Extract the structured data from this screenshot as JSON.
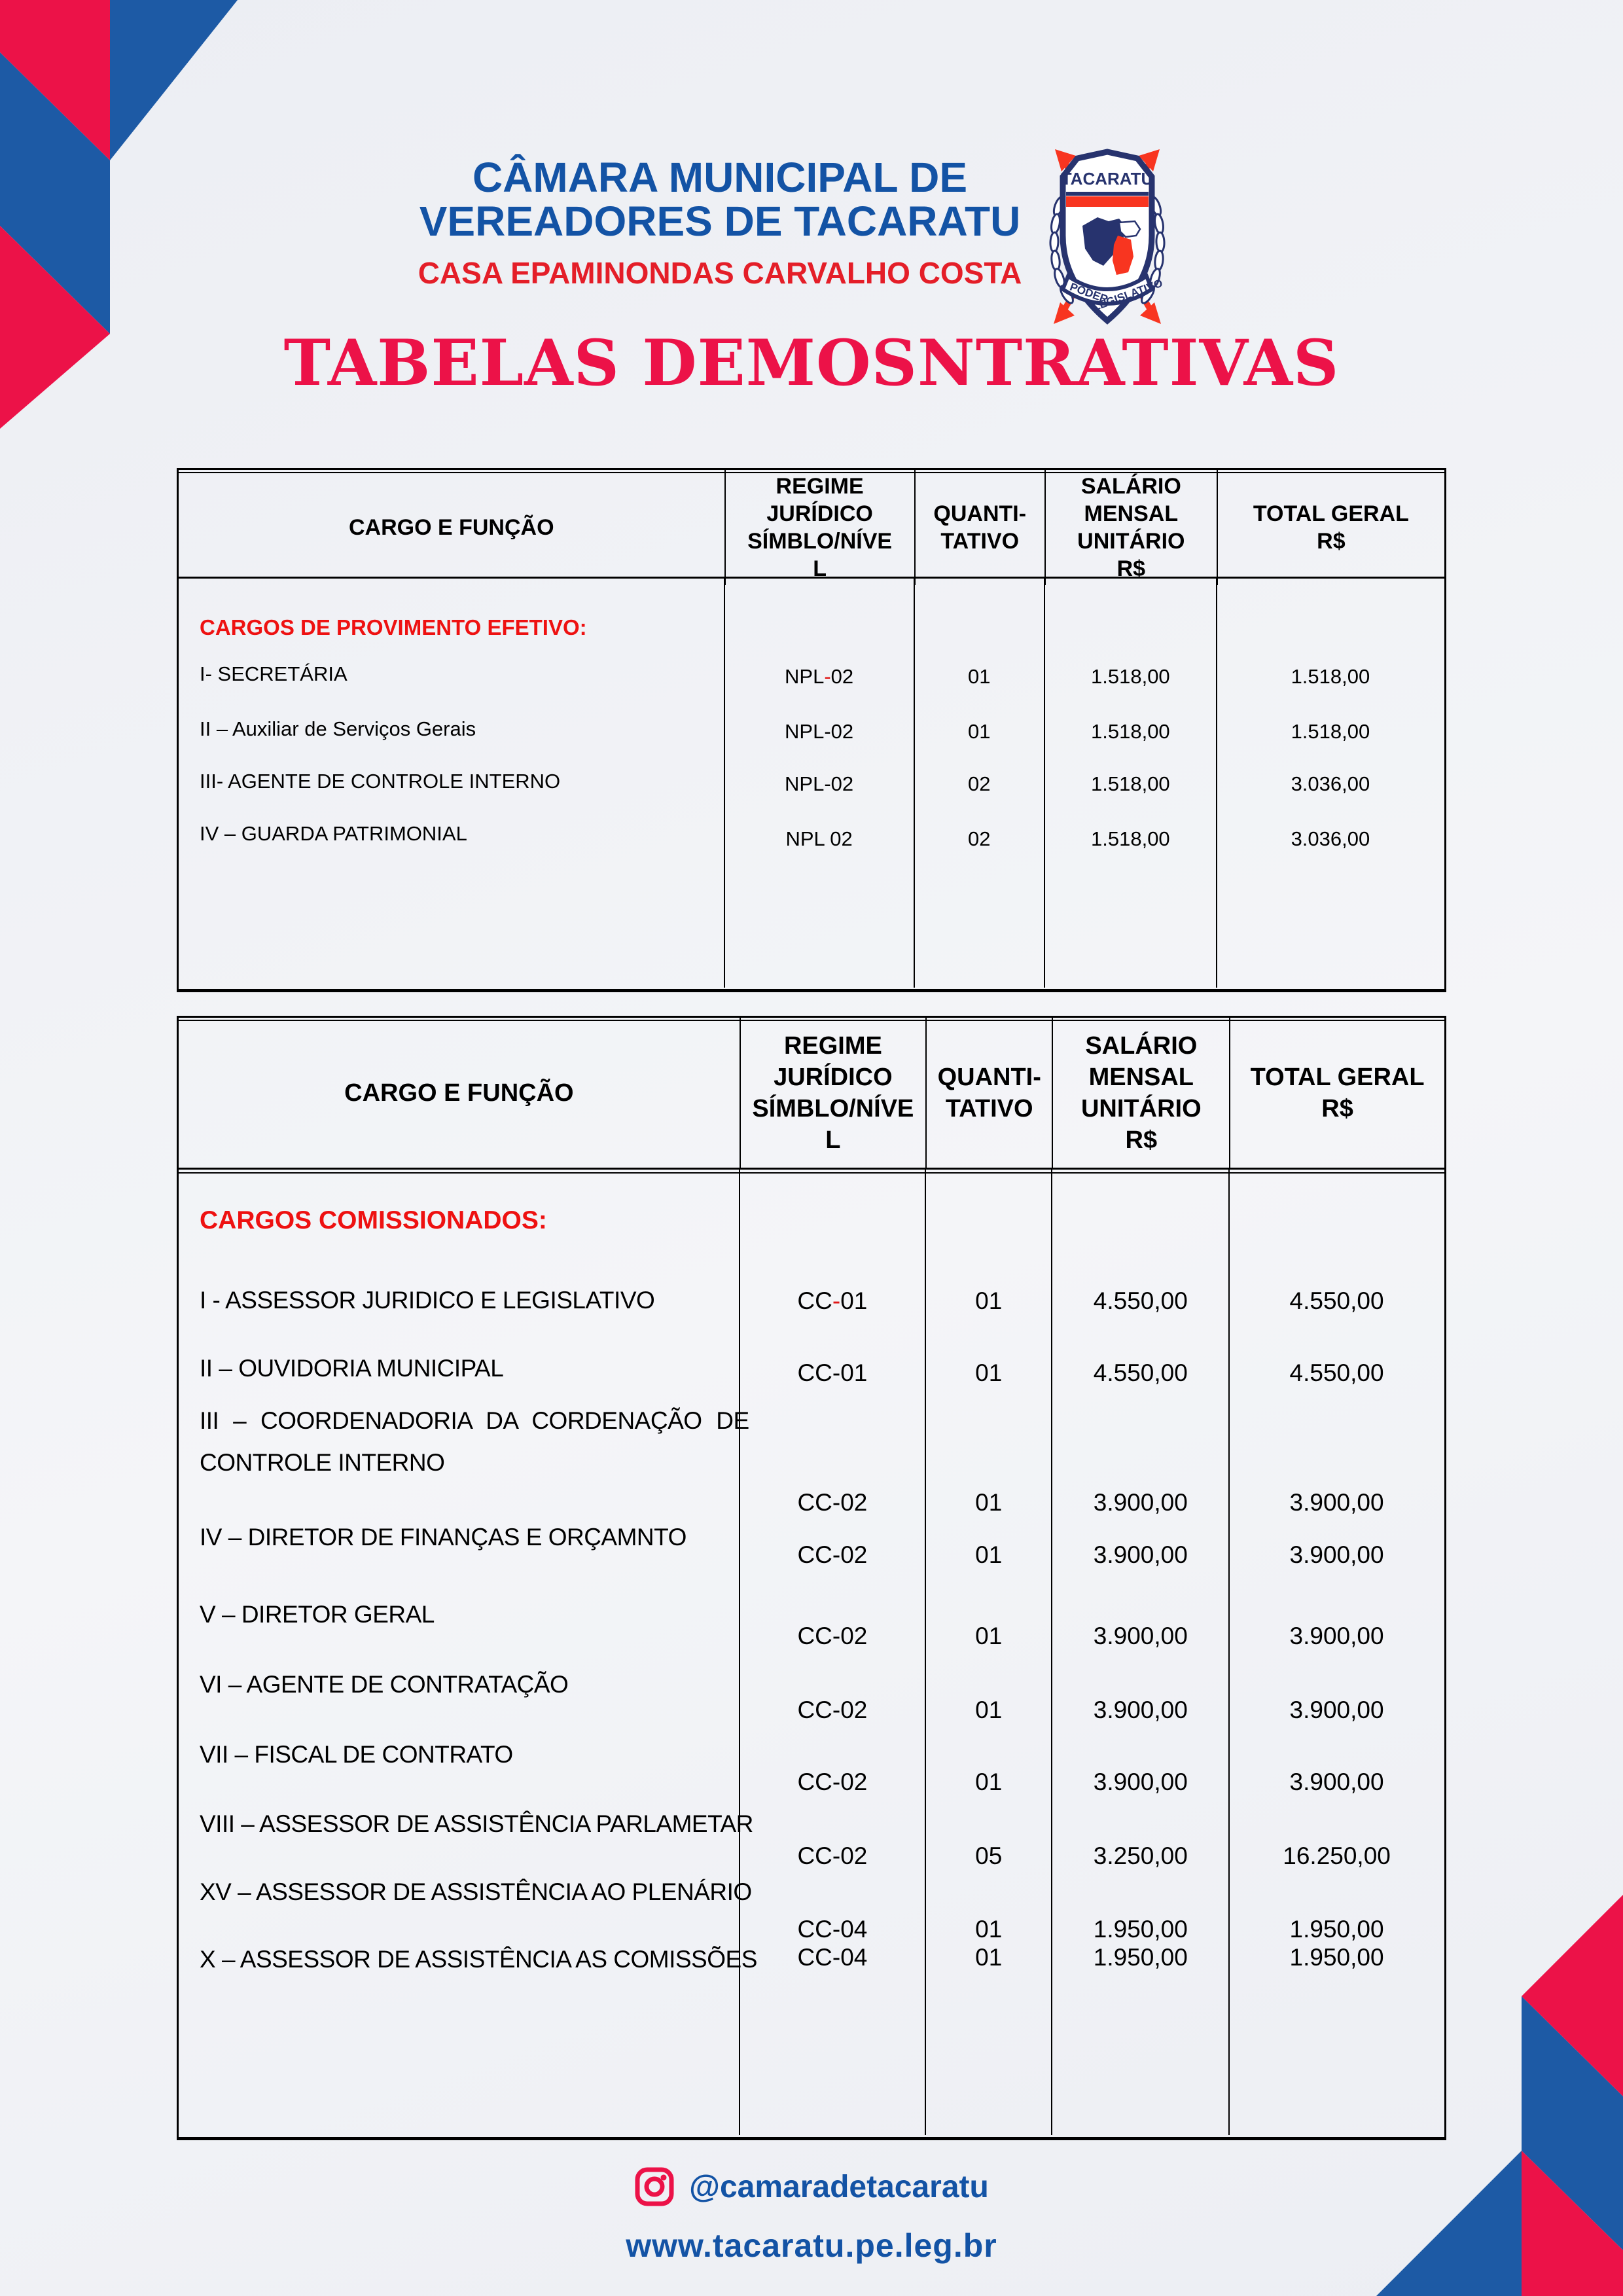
{
  "colors": {
    "brand_blue": "#1d5aa5",
    "brand_pink": "#ec1248",
    "header_blue": "#1353a5",
    "header_red": "#e41e28",
    "section_red": "#ee1111",
    "crest_navy": "#27336e",
    "crest_red": "#f83520",
    "table_border": "#000000",
    "background": "#eff1f5"
  },
  "header": {
    "line1": "CÂMARA MUNICIPAL DE",
    "line2": "VEREADORES DE TACARATU",
    "subtitle": "CASA EPAMINONDAS CARVALHO COSTA"
  },
  "logo": {
    "banner": "TACARATU",
    "ribbon_left": "PODER",
    "ribbon_right": "LEGISLATIVO"
  },
  "page_title": "TABELAS DEMOSNTRATIVAS",
  "tables": [
    {
      "name": "cargos-efetivos",
      "headers": [
        [
          "CARGO E FUNÇÃO"
        ],
        [
          "REGIME",
          "JURÍDICO",
          "SÍMBLO/NÍVE",
          "L"
        ],
        [
          "QUANTI-",
          "TATIVO"
        ],
        [
          "SALÁRIO",
          "MENSAL",
          "UNITÁRIO",
          "R$"
        ],
        [
          "TOTAL GERAL",
          "R$"
        ]
      ],
      "section": "CARGOS DE PROVIMENTO EFETIVO:",
      "rows": [
        {
          "cargo": "I- SECRETÁRIA",
          "regime": "NPL-02",
          "red_hyphen": true,
          "qty": "01",
          "unit": "1.518,00",
          "total": "1.518,00"
        },
        {
          "cargo": "II – Auxiliar de Serviços Gerais",
          "regime": "NPL-02",
          "qty": "01",
          "unit": "1.518,00",
          "total": "1.518,00"
        },
        {
          "cargo": "III- AGENTE DE CONTROLE INTERNO",
          "regime": "NPL-02",
          "qty": "02",
          "unit": "1.518,00",
          "total": "3.036,00"
        },
        {
          "cargo": "IV – GUARDA PATRIMONIAL",
          "regime": "NPL 02",
          "qty": "02",
          "unit": "1.518,00",
          "total": "3.036,00"
        }
      ]
    },
    {
      "name": "cargos-comissionados",
      "headers": [
        [
          "CARGO E FUNÇÃO"
        ],
        [
          "REGIME",
          "JURÍDICO",
          "SÍMBLO/NÍVE",
          "L"
        ],
        [
          "QUANTI-",
          "TATIVO"
        ],
        [
          "SALÁRIO",
          "MENSAL",
          "UNITÁRIO",
          "R$"
        ],
        [
          "TOTAL GERAL",
          "R$"
        ]
      ],
      "section": "CARGOS COMISSIONADOS:",
      "rows": [
        {
          "cargo": "I - ASSESSOR JURIDICO E LEGISLATIVO",
          "regime": "CC-01",
          "red_hyphen": true,
          "qty": "01",
          "unit": "4.550,00",
          "total": "4.550,00"
        },
        {
          "cargo": "II – OUVIDORIA MUNICIPAL",
          "regime": "CC-01",
          "qty": "01",
          "unit": "4.550,00",
          "total": "4.550,00"
        },
        {
          "cargo_lines": [
            "III – COORDENADORIA DA CORDENAÇÃO DE",
            "CONTROLE INTERNO"
          ],
          "regime": "CC-02",
          "qty": "01",
          "unit": "3.900,00",
          "total": "3.900,00"
        },
        {
          "cargo": "IV – DIRETOR DE FINANÇAS E ORÇAMNTO",
          "regime": "CC-02",
          "qty": "01",
          "unit": "3.900,00",
          "total": "3.900,00"
        },
        {
          "cargo": "V – DIRETOR GERAL",
          "regime": "CC-02",
          "qty": "01",
          "unit": "3.900,00",
          "total": "3.900,00"
        },
        {
          "cargo": "VI – AGENTE DE CONTRATAÇÃO",
          "regime": "CC-02",
          "qty": "01",
          "unit": "3.900,00",
          "total": "3.900,00"
        },
        {
          "cargo": "VII – FISCAL DE CONTRATO",
          "regime": "CC-02",
          "qty": "01",
          "unit": "3.900,00",
          "total": "3.900,00"
        },
        {
          "cargo": "VIII – ASSESSOR DE ASSISTÊNCIA PARLAMETAR",
          "regime": "CC-02",
          "qty": "05",
          "unit": "3.250,00",
          "total": "16.250,00"
        },
        {
          "cargo": "XV – ASSESSOR DE ASSISTÊNCIA AO PLENÁRIO",
          "regime": "CC-04",
          "qty": "01",
          "unit": "1.950,00",
          "total": "1.950,00"
        },
        {
          "cargo": "X – ASSESSOR DE ASSISTÊNCIA AS COMISSÕES",
          "regime": "CC-04",
          "qty": "01",
          "unit": "1.950,00",
          "total": "1.950,00"
        }
      ]
    }
  ],
  "footer": {
    "instagram": "@camaradetacaratu",
    "website": "www.tacaratu.pe.leg.br"
  }
}
